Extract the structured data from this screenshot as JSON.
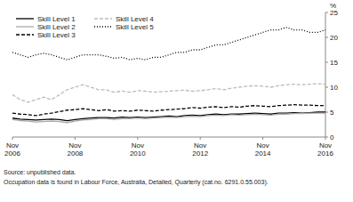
{
  "chart_data": {
    "type": "line",
    "y_label": "%",
    "annotations": [
      "Source: unpublished data.",
      "Occupation data is found in Labour Force, Australia, Detailed, Quarterly (cat.no. 6291.0.55.003)."
    ],
    "categories": [
      "Nov\n2006",
      null,
      null,
      null,
      null,
      null,
      null,
      null,
      "Nov\n2008",
      null,
      null,
      null,
      null,
      null,
      null,
      null,
      "Nov\n2010",
      null,
      null,
      null,
      null,
      null,
      null,
      null,
      "Nov\n2012",
      null,
      null,
      null,
      null,
      null,
      null,
      null,
      "Nov\n2014",
      null,
      null,
      null,
      null,
      null,
      null,
      null,
      "Nov\n2016"
    ],
    "ylim": [
      0,
      25
    ],
    "yticks": [
      0,
      5,
      10,
      15,
      20,
      25
    ],
    "legend": "upper left",
    "series": [
      {
        "name": "Skill Level 1",
        "color": "#000000",
        "line_style": "solid",
        "values": [
          3.8,
          3.6,
          3.5,
          3.4,
          3.5,
          3.6,
          3.5,
          3.3,
          3.5,
          3.7,
          3.8,
          3.9,
          3.9,
          3.8,
          4.0,
          3.9,
          4.0,
          3.9,
          4.0,
          4.1,
          4.2,
          4.1,
          4.3,
          4.4,
          4.3,
          4.5,
          4.6,
          4.5,
          4.6,
          4.6,
          4.7,
          4.8,
          4.7,
          4.6,
          4.8,
          4.8,
          4.9,
          4.8,
          4.9,
          5.0,
          5.0
        ]
      },
      {
        "name": "Skill Level 2",
        "color": "#aaaaaa",
        "line_style": "solid",
        "values": [
          3.5,
          3.3,
          3.2,
          3.0,
          3.1,
          3.2,
          3.1,
          2.9,
          3.2,
          3.4,
          3.5,
          3.7,
          3.7,
          3.5,
          3.7,
          3.7,
          3.8,
          3.7,
          3.8,
          3.9,
          4.0,
          3.9,
          4.1,
          4.2,
          4.1,
          4.3,
          4.4,
          4.3,
          4.5,
          4.4,
          4.5,
          4.6,
          4.5,
          4.4,
          4.6,
          4.6,
          4.7,
          4.7,
          4.8,
          4.8,
          4.8
        ]
      },
      {
        "name": "Skill Level 3",
        "color": "#000000",
        "line_style": "dashed",
        "values": [
          4.8,
          4.6,
          4.5,
          4.3,
          4.6,
          4.8,
          5.1,
          5.4,
          5.5,
          5.7,
          5.5,
          5.3,
          5.5,
          5.2,
          5.3,
          5.2,
          5.4,
          5.3,
          5.2,
          5.4,
          5.5,
          5.6,
          5.7,
          5.9,
          5.8,
          6.0,
          6.1,
          5.9,
          6.1,
          6.0,
          6.2,
          6.3,
          6.2,
          6.1,
          6.3,
          6.4,
          6.5,
          6.4,
          6.4,
          6.3,
          6.3
        ]
      },
      {
        "name": "Skill Level 4",
        "color": "#bbbbbb",
        "line_style": "dashed",
        "values": [
          8.5,
          7.5,
          7.0,
          7.5,
          8.0,
          7.5,
          8.5,
          9.5,
          10.0,
          10.5,
          10.0,
          9.5,
          9.5,
          9.0,
          9.2,
          9.0,
          9.3,
          9.2,
          9.0,
          9.1,
          9.2,
          9.3,
          9.4,
          9.2,
          9.3,
          9.5,
          9.7,
          9.5,
          9.8,
          10.0,
          10.2,
          10.3,
          10.2,
          10.0,
          10.3,
          10.5,
          10.6,
          10.5,
          10.6,
          10.7,
          10.6
        ]
      },
      {
        "name": "Skill Level 5",
        "color": "#000000",
        "line_style": "dotted",
        "values": [
          17.0,
          16.5,
          16.0,
          16.5,
          16.8,
          16.5,
          16.0,
          15.5,
          16.0,
          16.5,
          16.5,
          16.5,
          16.2,
          15.8,
          16.0,
          15.5,
          15.8,
          15.5,
          16.0,
          16.0,
          16.5,
          17.0,
          17.0,
          17.5,
          17.5,
          18.0,
          18.5,
          18.5,
          19.0,
          19.5,
          20.0,
          20.5,
          21.0,
          21.5,
          21.5,
          22.0,
          21.5,
          21.5,
          21.0,
          21.0,
          21.5
        ]
      }
    ]
  }
}
